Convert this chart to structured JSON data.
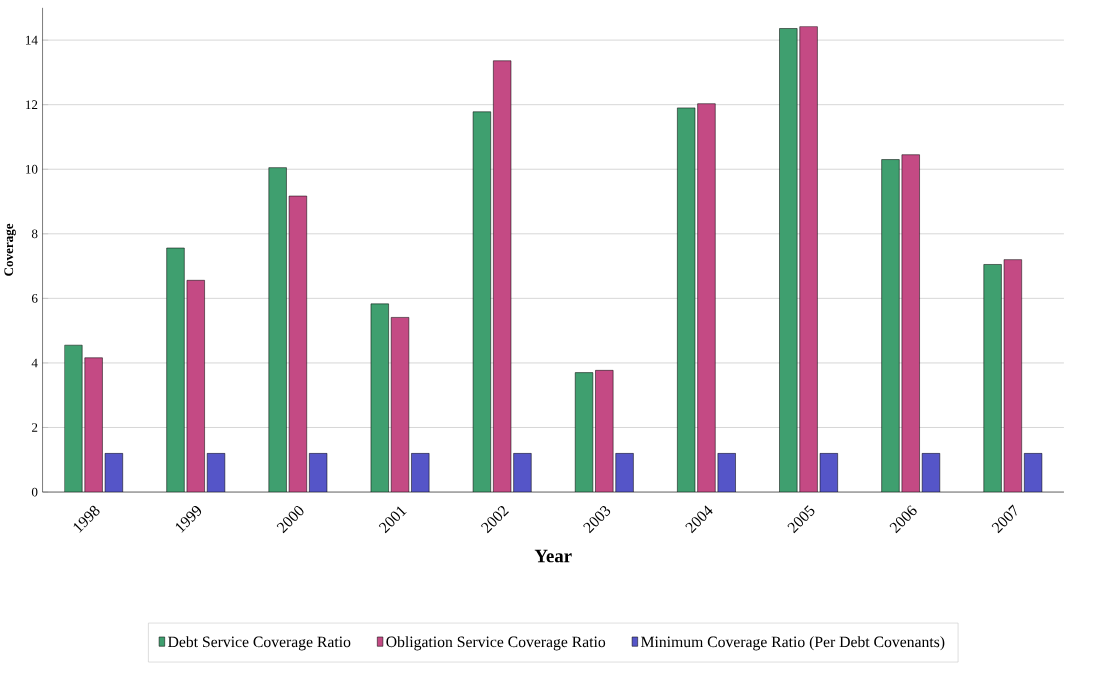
{
  "chart_data": {
    "type": "bar",
    "xlabel": "Year",
    "ylabel": "Coverage",
    "categories": [
      "1998",
      "1999",
      "2000",
      "2001",
      "2002",
      "2003",
      "2004",
      "2005",
      "2006",
      "2007"
    ],
    "series": [
      {
        "name": "Debt Service Coverage Ratio",
        "color": "#3f9f6f",
        "values": [
          4.55,
          7.56,
          10.05,
          5.83,
          11.78,
          3.7,
          11.9,
          14.36,
          10.3,
          7.05
        ]
      },
      {
        "name": "Obligation Service Coverage Ratio",
        "color": "#c44a84",
        "values": [
          4.16,
          6.56,
          9.17,
          5.41,
          13.36,
          3.77,
          12.03,
          14.42,
          10.45,
          7.2
        ]
      },
      {
        "name": "Minimum Coverage Ratio (Per Debt Covenants)",
        "color": "#5555c8",
        "values": [
          1.2,
          1.2,
          1.2,
          1.2,
          1.2,
          1.2,
          1.2,
          1.2,
          1.2,
          1.2
        ]
      }
    ],
    "ylim": [
      0,
      15
    ],
    "yticks": [
      0,
      2,
      4,
      6,
      8,
      10,
      12,
      14
    ],
    "grid": "y",
    "legend": "bottom"
  }
}
